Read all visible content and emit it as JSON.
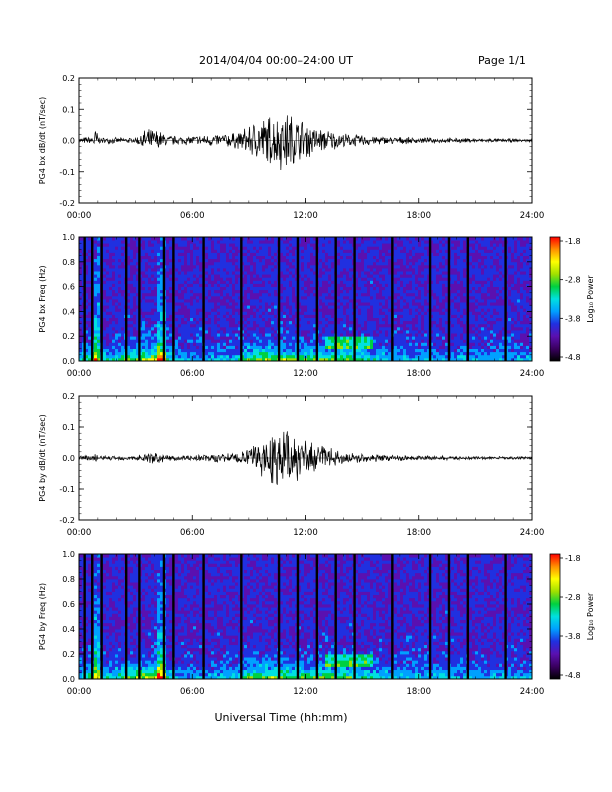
{
  "header": {
    "title": "2014/04/04  00:00–24:00 UT",
    "page": "Page 1/1"
  },
  "footer": {
    "xlabel": "Universal Time (hh:mm)"
  },
  "colors": {
    "trace": "#000000",
    "background": "#ffffff",
    "colormap": [
      "#000000",
      "#3a0060",
      "#5a10b0",
      "#2030e0",
      "#00a0ff",
      "#00e0e0",
      "#00d040",
      "#a0e000",
      "#ffff00",
      "#ff9000",
      "#ff0000"
    ]
  },
  "chart_data": [
    {
      "id": "bx_ts",
      "type": "line",
      "ylabel": "PG4 bx dB/dt (nT/sec)",
      "xlim": [
        "00:00",
        "24:00"
      ],
      "ylim": [
        -0.2,
        0.2
      ],
      "yticks": [
        "-0.2",
        "-0.1",
        "0.0",
        "0.1",
        "0.2"
      ],
      "xticks": [
        "00:00",
        "06:00",
        "12:00",
        "18:00",
        "24:00"
      ],
      "envelope": {
        "x_hours": [
          0,
          0.7,
          0.9,
          1.1,
          3,
          3.5,
          4.2,
          4.6,
          5.5,
          8.5,
          9.5,
          10.5,
          11,
          11.5,
          12.5,
          14,
          16,
          18,
          24
        ],
        "amplitude": [
          0.01,
          0.015,
          0.05,
          0.01,
          0.01,
          0.04,
          0.04,
          0.02,
          0.015,
          0.03,
          0.08,
          0.1,
          0.11,
          0.09,
          0.05,
          0.025,
          0.015,
          0.01,
          0.005
        ]
      }
    },
    {
      "id": "bx_spec",
      "type": "heatmap",
      "ylabel": "PG4 bx Freq (Hz)",
      "xlim": [
        "00:00",
        "24:00"
      ],
      "ylim": [
        0.0,
        1.0
      ],
      "yticks": [
        "0.0",
        "0.2",
        "0.4",
        "0.6",
        "0.8",
        "1.0"
      ],
      "xticks": [
        "00:00",
        "06:00",
        "12:00",
        "18:00",
        "24:00"
      ],
      "colorbar": {
        "label": "Log₁₀ Power",
        "range": [
          -4.8,
          -1.8
        ],
        "ticks": [
          "-1.8",
          "-2.8",
          "-3.8",
          "-4.8"
        ]
      },
      "gaps_hours": [
        0.3,
        0.7,
        1.2,
        2.5,
        3.2,
        4.5,
        5,
        6.6,
        8.6,
        10.6,
        11.6,
        12.6,
        13.6,
        14.6,
        16.6,
        18.6,
        19.6,
        20.6,
        22.6
      ]
    },
    {
      "id": "by_ts",
      "type": "line",
      "ylabel": "PG4 by dB/dt (nT/sec)",
      "xlim": [
        "00:00",
        "24:00"
      ],
      "ylim": [
        -0.2,
        0.2
      ],
      "yticks": [
        "-0.2",
        "-0.1",
        "0.0",
        "0.1",
        "0.2"
      ],
      "xticks": [
        "00:00",
        "06:00",
        "12:00",
        "18:00",
        "24:00"
      ],
      "envelope": {
        "x_hours": [
          0,
          0.7,
          0.9,
          1.1,
          3,
          3.5,
          4.2,
          4.6,
          5.5,
          8.5,
          9.5,
          10.5,
          11,
          11.5,
          12.5,
          14,
          16,
          18,
          24
        ],
        "amplitude": [
          0.008,
          0.012,
          0.025,
          0.008,
          0.008,
          0.02,
          0.02,
          0.012,
          0.01,
          0.02,
          0.06,
          0.1,
          0.12,
          0.08,
          0.05,
          0.02,
          0.012,
          0.008,
          0.005
        ]
      }
    },
    {
      "id": "by_spec",
      "type": "heatmap",
      "ylabel": "PG4 by Freq (Hz)",
      "xlim": [
        "00:00",
        "24:00"
      ],
      "ylim": [
        0.0,
        1.0
      ],
      "yticks": [
        "0.0",
        "0.2",
        "0.4",
        "0.6",
        "0.8",
        "1.0"
      ],
      "xticks": [
        "00:00",
        "06:00",
        "12:00",
        "18:00",
        "24:00"
      ],
      "colorbar": {
        "label": "Log₁₀ Power",
        "range": [
          -4.8,
          -1.8
        ],
        "ticks": [
          "-1.8",
          "-2.8",
          "-3.8",
          "-4.8"
        ]
      },
      "gaps_hours": [
        0.3,
        0.7,
        1.2,
        2.5,
        3.2,
        4.5,
        5,
        6.6,
        8.6,
        10.6,
        11.6,
        12.6,
        13.6,
        14.6,
        16.6,
        18.6,
        19.6,
        20.6,
        22.6
      ]
    }
  ]
}
